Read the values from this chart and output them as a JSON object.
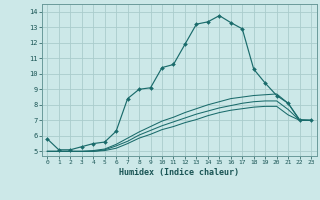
{
  "title": "",
  "xlabel": "Humidex (Indice chaleur)",
  "bg_color": "#cce8e8",
  "grid_color": "#aacccc",
  "line_color": "#1a6b6b",
  "xlim": [
    -0.5,
    23.5
  ],
  "ylim": [
    4.7,
    14.5
  ],
  "xticks": [
    0,
    1,
    2,
    3,
    4,
    5,
    6,
    7,
    8,
    9,
    10,
    11,
    12,
    13,
    14,
    15,
    16,
    17,
    18,
    19,
    20,
    21,
    22,
    23
  ],
  "yticks": [
    5,
    6,
    7,
    8,
    9,
    10,
    11,
    12,
    13,
    14
  ],
  "series1_x": [
    0,
    1,
    2,
    3,
    4,
    5,
    6,
    7,
    8,
    9,
    10,
    11,
    12,
    13,
    14,
    15,
    16,
    17,
    18,
    19,
    20,
    21,
    22,
    23
  ],
  "series1_y": [
    5.8,
    5.1,
    5.1,
    5.3,
    5.5,
    5.6,
    6.3,
    8.4,
    9.0,
    9.1,
    10.4,
    10.6,
    11.9,
    13.2,
    13.35,
    13.75,
    13.3,
    12.9,
    10.3,
    9.4,
    8.6,
    8.1,
    7.0,
    7.0
  ],
  "series2_x": [
    0,
    1,
    2,
    3,
    4,
    5,
    6,
    7,
    8,
    9,
    10,
    11,
    12,
    13,
    14,
    15,
    16,
    17,
    18,
    19,
    20,
    21,
    22,
    23
  ],
  "series2_y": [
    5.0,
    5.0,
    5.0,
    5.0,
    5.05,
    5.15,
    5.45,
    5.85,
    6.25,
    6.6,
    6.95,
    7.2,
    7.5,
    7.75,
    8.0,
    8.2,
    8.4,
    8.5,
    8.6,
    8.65,
    8.7,
    8.1,
    7.05,
    7.0
  ],
  "series3_x": [
    0,
    1,
    2,
    3,
    4,
    5,
    6,
    7,
    8,
    9,
    10,
    11,
    12,
    13,
    14,
    15,
    16,
    17,
    18,
    19,
    20,
    21,
    22,
    23
  ],
  "series3_y": [
    5.0,
    5.0,
    5.0,
    5.0,
    5.0,
    5.05,
    5.2,
    5.5,
    5.85,
    6.1,
    6.4,
    6.6,
    6.85,
    7.05,
    7.3,
    7.5,
    7.65,
    7.75,
    7.85,
    7.9,
    7.9,
    7.35,
    7.0,
    7.0
  ],
  "series4_x": [
    0,
    1,
    2,
    3,
    4,
    5,
    6,
    7,
    8,
    9,
    10,
    11,
    12,
    13,
    14,
    15,
    16,
    17,
    18,
    19,
    20,
    21,
    22,
    23
  ],
  "series4_y": [
    5.0,
    5.0,
    5.0,
    5.0,
    5.0,
    5.1,
    5.35,
    5.65,
    6.05,
    6.35,
    6.65,
    6.9,
    7.15,
    7.4,
    7.6,
    7.8,
    7.95,
    8.1,
    8.2,
    8.25,
    8.25,
    7.7,
    7.0,
    7.0
  ]
}
